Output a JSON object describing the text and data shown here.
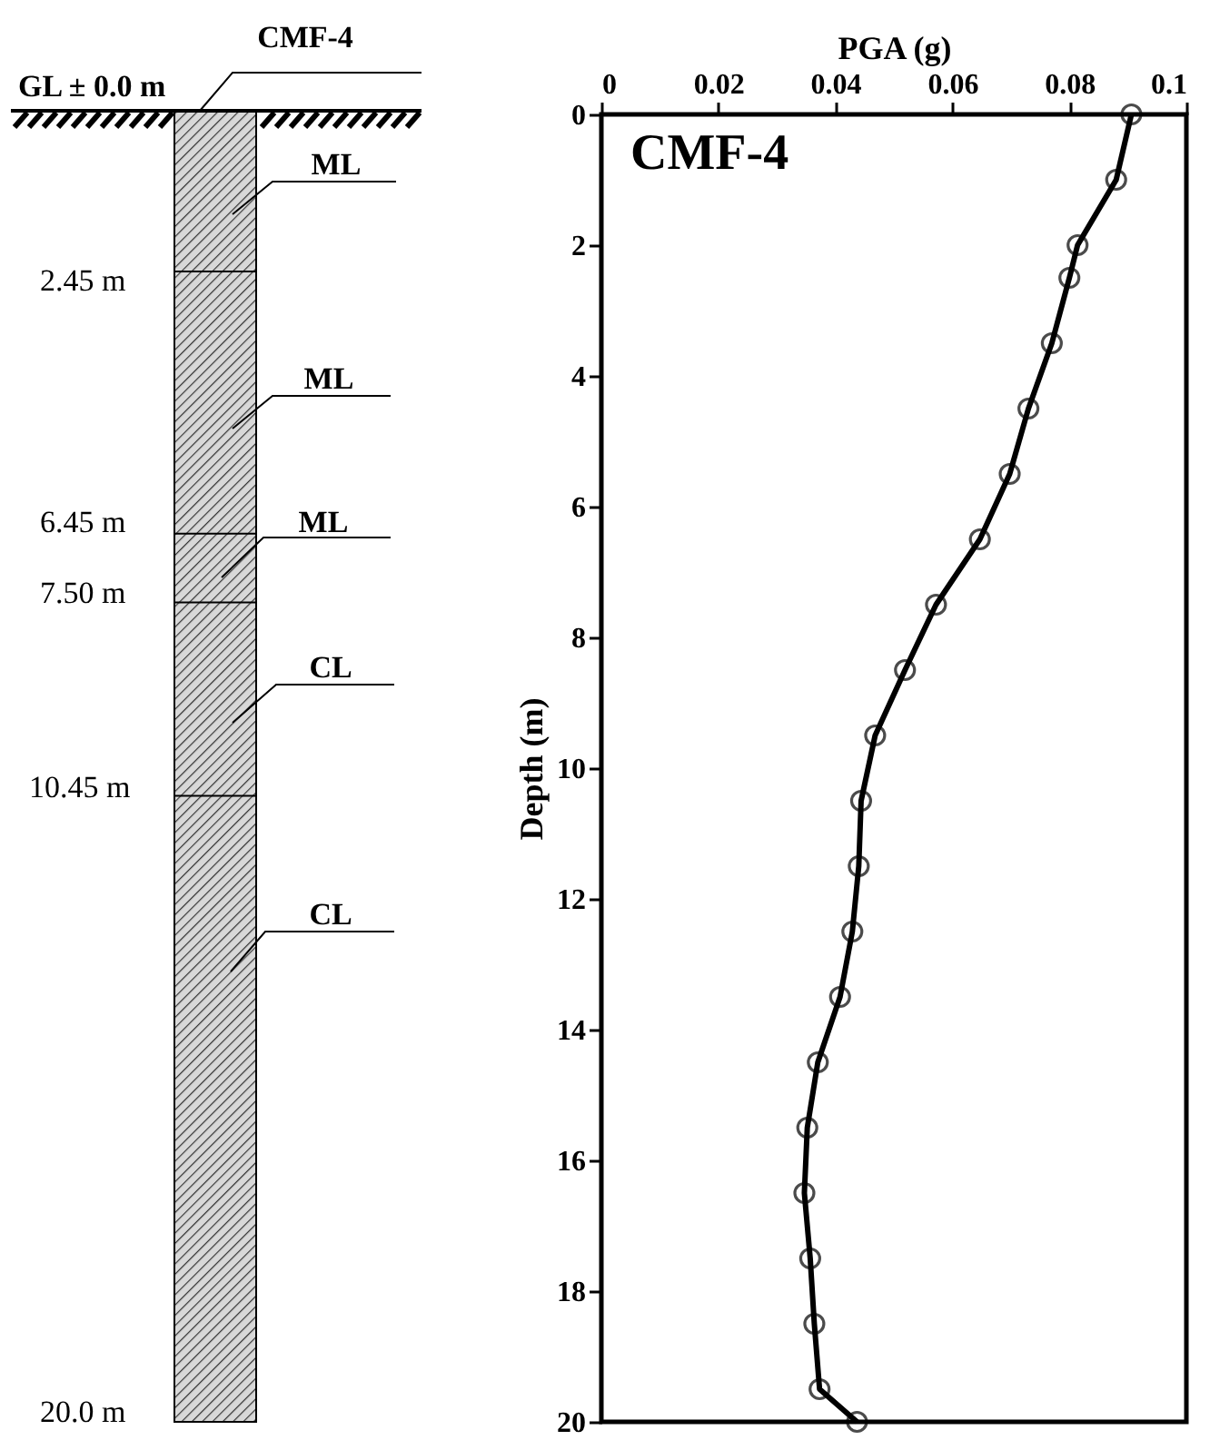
{
  "chart_data": {
    "type": "line",
    "title": "CMF-4",
    "xlabel": "PGA (g)",
    "ylabel": "Depth (m)",
    "annotations": [
      "CMF-4",
      "GL ± 0.0 m",
      "ML",
      "2.45 m",
      "ML",
      "6.45 m",
      "ML",
      "7.50 m",
      "CL",
      "10.45 m",
      "CL",
      "20.0 m"
    ],
    "xlim": [
      0,
      0.1
    ],
    "xticks": [
      {
        "value": 0,
        "label": "0"
      },
      0.02,
      0.04,
      0.06,
      0.08,
      {
        "value": 0.1,
        "label": "0.1"
      }
    ],
    "ylim": [
      20,
      0
    ],
    "yticks": [
      0,
      2,
      4,
      6,
      8,
      10,
      12,
      14,
      16,
      18,
      20
    ],
    "marker": "circle",
    "line_style": "solid",
    "series": [
      {
        "color": "#000000",
        "x": [
          0.0906,
          0.088,
          0.0814,
          0.08,
          0.077,
          0.073,
          0.0698,
          0.0647,
          0.0572,
          0.0519,
          0.0468,
          0.0444,
          0.044,
          0.0429,
          0.0408,
          0.037,
          0.0352,
          0.0347,
          0.0357,
          0.0364,
          0.0373,
          0.0437
        ],
        "values": [
          0,
          1,
          2,
          2.5,
          3.5,
          4.5,
          5.5,
          6.5,
          7.5,
          8.5,
          9.5,
          10.5,
          11.5,
          12.5,
          13.5,
          14.5,
          15.5,
          16.5,
          17.5,
          18.5,
          19.5,
          20
        ]
      }
    ]
  }
}
